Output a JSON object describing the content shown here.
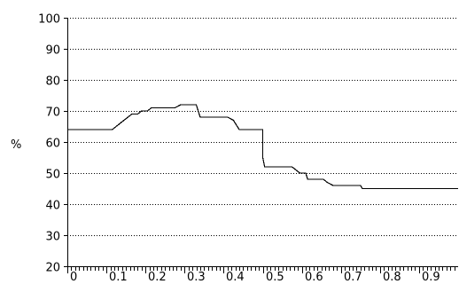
{
  "chart_data": {
    "type": "line",
    "title": "",
    "xlabel": "",
    "ylabel": "%",
    "xlim": [
      0,
      1.0
    ],
    "ylim": [
      20,
      100
    ],
    "grid": "horizontal",
    "x_ticks": [
      "0",
      "0.1",
      "0.2",
      "0.3",
      "0.4",
      "0.5",
      "0.6",
      "0.7",
      "0.8",
      "0.9"
    ],
    "x_tick_values": [
      0,
      0.1,
      0.2,
      0.3,
      0.4,
      0.5,
      0.6,
      0.7,
      0.8,
      0.9
    ],
    "y_ticks": [
      "20",
      "30",
      "40",
      "50",
      "60",
      "70",
      "80",
      "90",
      "100"
    ],
    "y_tick_values": [
      20,
      30,
      40,
      50,
      60,
      70,
      80,
      90,
      100
    ],
    "series": [
      {
        "points": [
          [
            0.0,
            64
          ],
          [
            0.115,
            64
          ],
          [
            0.125,
            65
          ],
          [
            0.135,
            66
          ],
          [
            0.145,
            67
          ],
          [
            0.155,
            68
          ],
          [
            0.165,
            69
          ],
          [
            0.18,
            69
          ],
          [
            0.19,
            70
          ],
          [
            0.205,
            70
          ],
          [
            0.215,
            71
          ],
          [
            0.275,
            71
          ],
          [
            0.29,
            72
          ],
          [
            0.33,
            72
          ],
          [
            0.34,
            68
          ],
          [
            0.41,
            68
          ],
          [
            0.425,
            67
          ],
          [
            0.44,
            64
          ],
          [
            0.5,
            64
          ],
          [
            0.5,
            55
          ],
          [
            0.505,
            52
          ],
          [
            0.575,
            52
          ],
          [
            0.585,
            51
          ],
          [
            0.595,
            50
          ],
          [
            0.61,
            50
          ],
          [
            0.615,
            48
          ],
          [
            0.655,
            48
          ],
          [
            0.665,
            47
          ],
          [
            0.68,
            46
          ],
          [
            0.75,
            46
          ],
          [
            0.755,
            45
          ],
          [
            1.0,
            45
          ]
        ]
      }
    ]
  }
}
